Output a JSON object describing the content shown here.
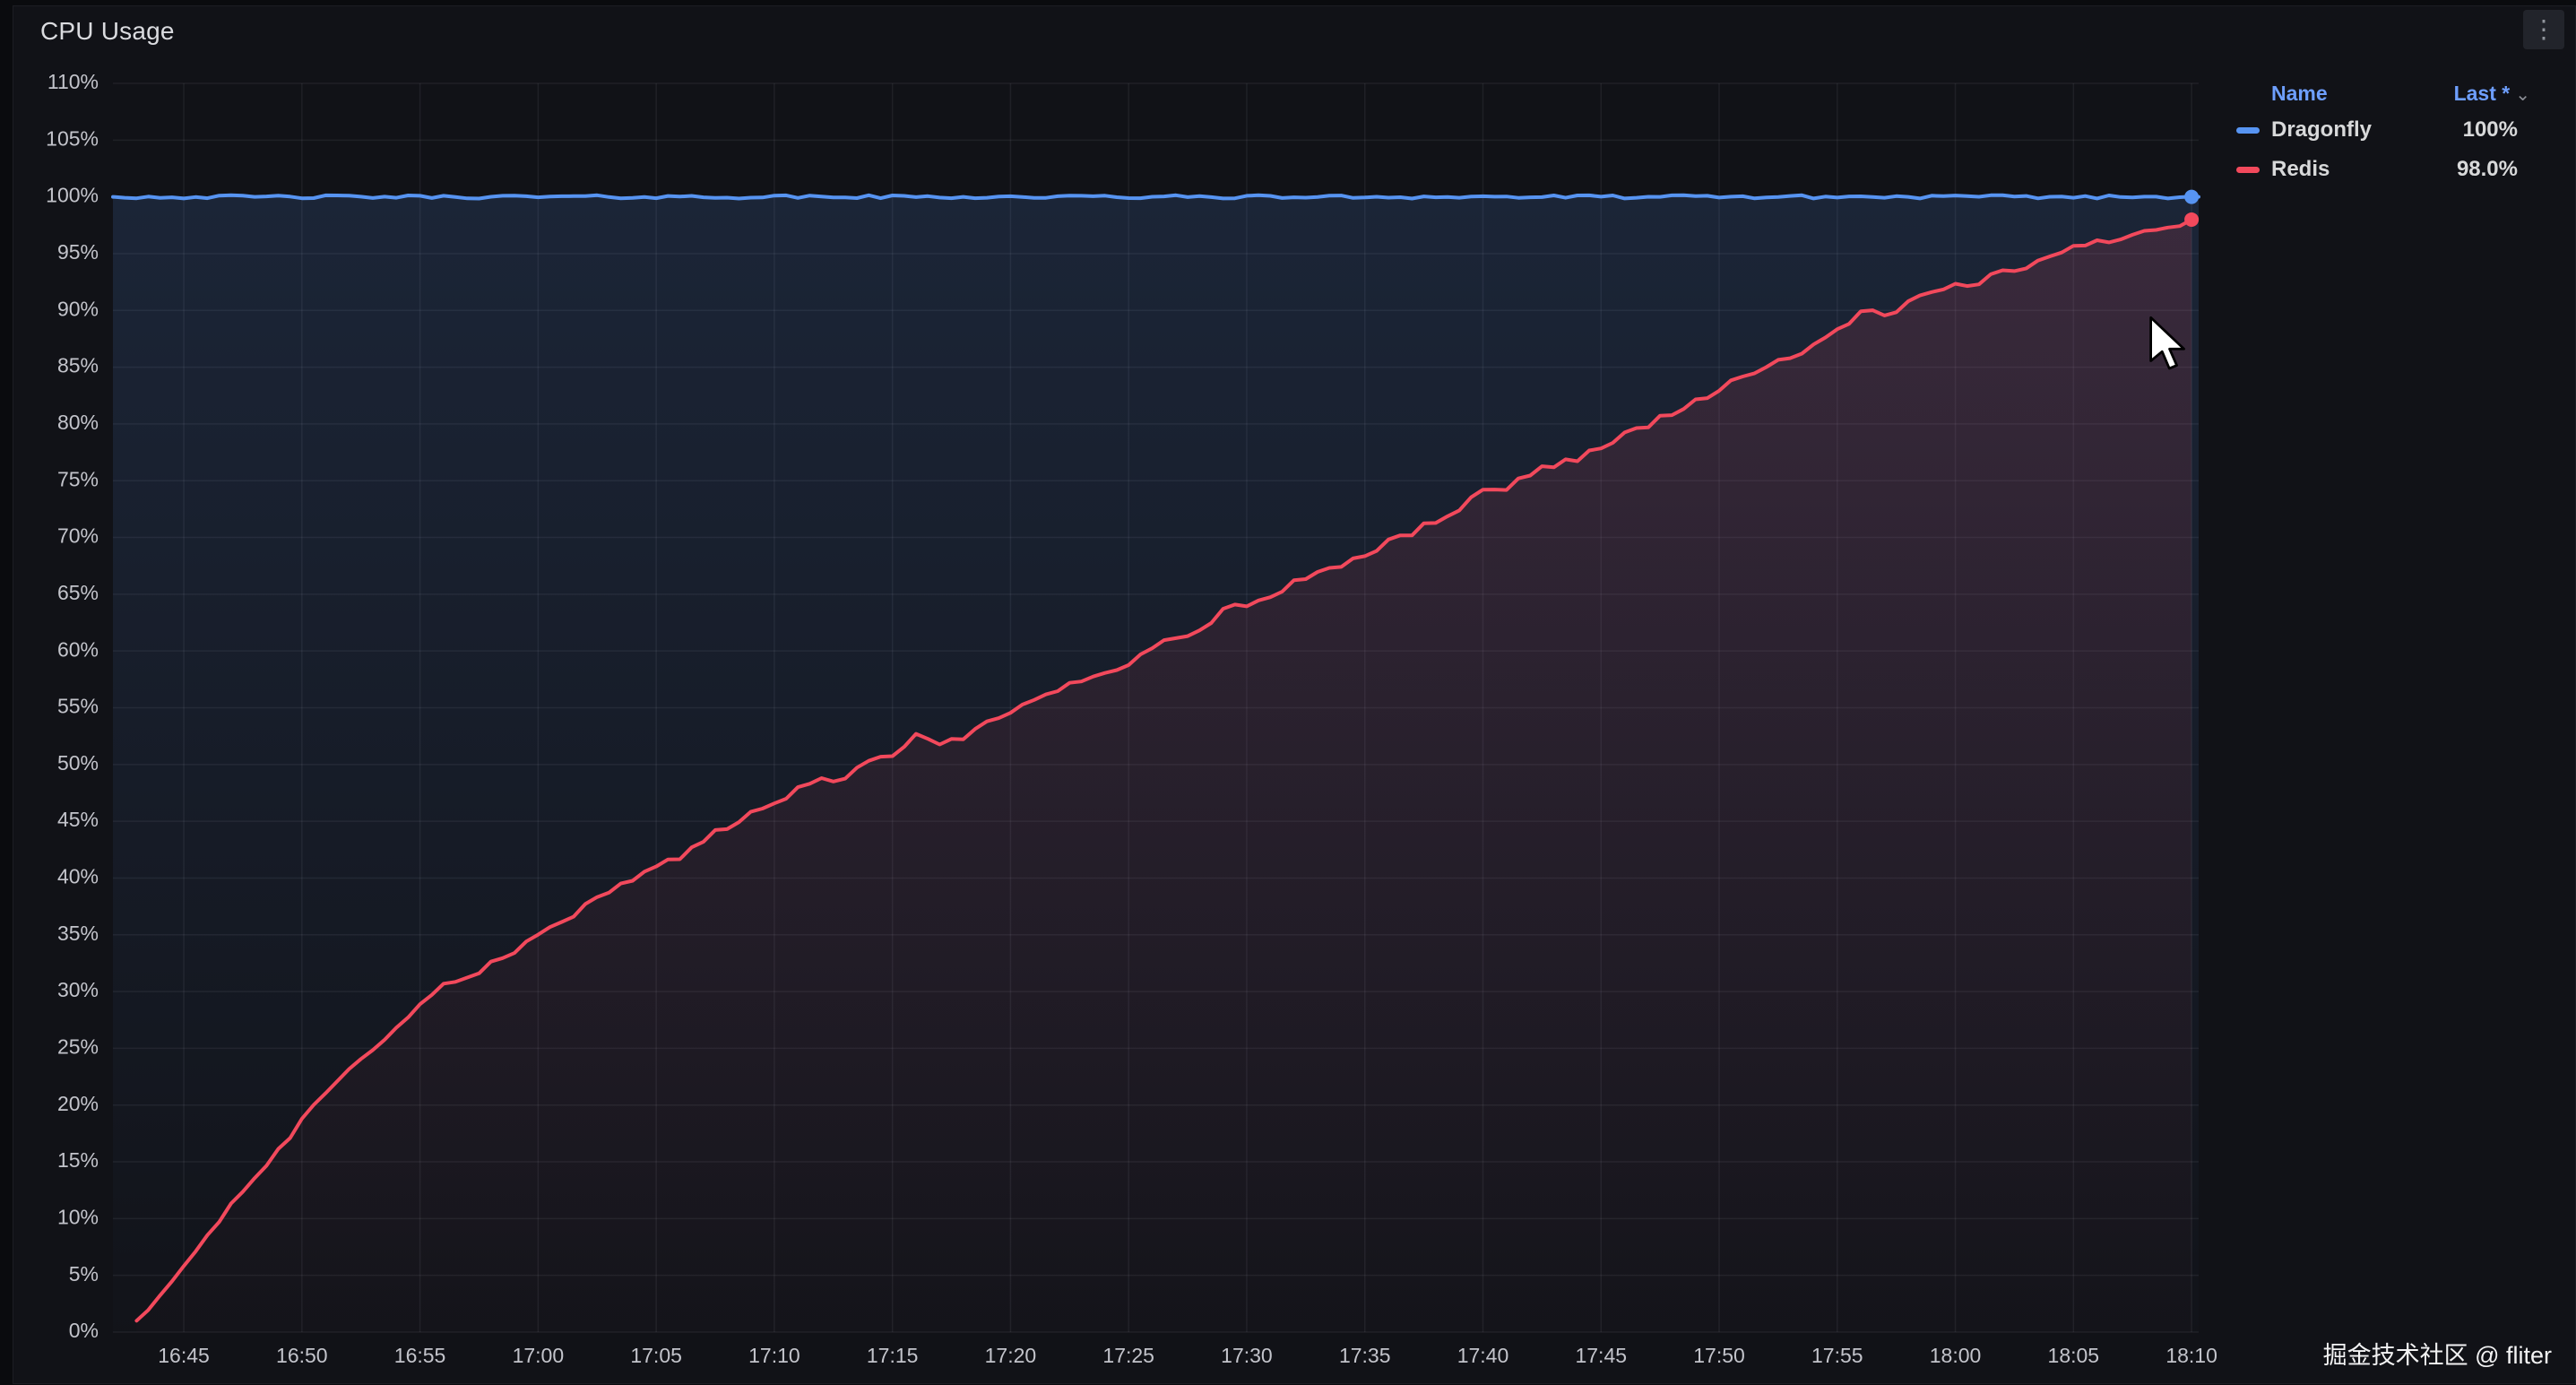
{
  "panel": {
    "title": "CPU Usage",
    "kebab_icon": "⋮"
  },
  "watermark": "掘金技术社区 @ fliter",
  "legend": {
    "name_header": "Name",
    "value_header": "Last *",
    "sort_icon": "⌄",
    "rows": [
      {
        "name": "Dragonfly",
        "value": "100%",
        "color": "#5794F2"
      },
      {
        "name": "Redis",
        "value": "98.0%",
        "color": "#F2495C"
      }
    ]
  },
  "colors": {
    "background": "#111217",
    "grid": "rgba(204,204,220,0.08)",
    "axis_text": "#c3c4cb",
    "dragonfly": "#5794F2",
    "redis": "#F2495C"
  },
  "chart_data": {
    "type": "line",
    "title": "CPU Usage",
    "grid": true,
    "legend_position": "right",
    "ylim": [
      0,
      110
    ],
    "y_tick_step": 5,
    "y_unit": "%",
    "time_origin": "16:42",
    "x_range_minutes": [
      0,
      88.3
    ],
    "x_ticks": [
      "16:45",
      "16:50",
      "16:55",
      "17:00",
      "17:05",
      "17:10",
      "17:15",
      "17:20",
      "17:25",
      "17:30",
      "17:35",
      "17:40",
      "17:45",
      "17:50",
      "17:55",
      "18:00",
      "18:05",
      "18:10"
    ],
    "x_tick_minutes": [
      3,
      8,
      13,
      18,
      23,
      28,
      33,
      38,
      43,
      48,
      53,
      58,
      63,
      68,
      73,
      78,
      83,
      88
    ],
    "series": [
      {
        "name": "Dragonfly",
        "color": "#5794F2",
        "unit": "%",
        "x_minutes": [
          0,
          88.3
        ],
        "values": [
          100,
          100
        ],
        "last": "100%",
        "end_dot": {
          "minute": 88,
          "value": 100
        }
      },
      {
        "name": "Redis",
        "color": "#F2495C",
        "unit": "%",
        "x_first": 1,
        "x_step": 1,
        "values": [
          1.0,
          3.5,
          6.0,
          8.5,
          11.0,
          13.5,
          16.0,
          18.5,
          21.0,
          23.0,
          25.0,
          27.0,
          29.0,
          30.5,
          31.0,
          32.5,
          33.5,
          35.0,
          36.0,
          37.5,
          38.5,
          40.0,
          41.0,
          42.0,
          43.5,
          44.5,
          45.5,
          46.5,
          48.0,
          48.5,
          49.0,
          50.0,
          51.0,
          52.5,
          51.5,
          52.5,
          53.5,
          54.5,
          55.5,
          56.5,
          57.5,
          58.0,
          59.0,
          60.5,
          61.0,
          62.0,
          63.5,
          64.0,
          65.0,
          66.0,
          67.0,
          67.5,
          68.5,
          69.5,
          70.5,
          71.5,
          72.5,
          74.0,
          74.5,
          75.5,
          76.5,
          77.0,
          78.0,
          79.0,
          80.0,
          81.0,
          82.0,
          83.0,
          84.0,
          85.0,
          86.0,
          87.0,
          88.0,
          90.0,
          89.5,
          90.5,
          91.5,
          92.0,
          92.5,
          93.5,
          94.0,
          94.5,
          95.5,
          96.0,
          96.5,
          97.0,
          97.5,
          98.0
        ],
        "last": "98.0%",
        "end_dot": {
          "minute": 88,
          "value": 98
        }
      }
    ]
  }
}
